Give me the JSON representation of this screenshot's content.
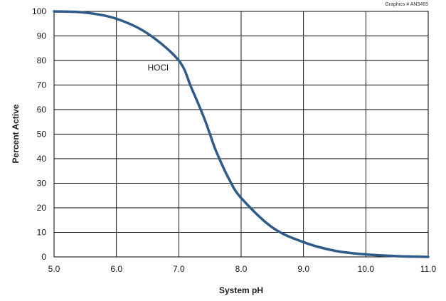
{
  "chart_data": {
    "type": "line",
    "title": "",
    "xlabel": "System pH",
    "ylabel": "Percent Active",
    "credit": "Graphics # AN3465",
    "xlim": [
      5.0,
      11.0
    ],
    "ylim": [
      0,
      100
    ],
    "x_ticks": [
      "5.0",
      "6.0",
      "7.0",
      "8.0",
      "9.0",
      "10.0",
      "11.0"
    ],
    "y_ticks": [
      "0",
      "10",
      "20",
      "30",
      "40",
      "50",
      "60",
      "70",
      "80",
      "90",
      "100"
    ],
    "grid": true,
    "series": [
      {
        "name": "HOCl",
        "color": "#2f5b8a",
        "x": [
          5.0,
          5.5,
          6.0,
          6.5,
          7.0,
          7.2,
          7.4,
          7.5,
          7.6,
          7.8,
          8.0,
          8.5,
          9.0,
          9.5,
          10.0,
          10.5,
          11.0
        ],
        "y": [
          100,
          99.5,
          97,
          91,
          80,
          69,
          57,
          50,
          43,
          32,
          24,
          12,
          6,
          2.5,
          1,
          0.3,
          0
        ]
      }
    ],
    "annotations": [
      {
        "text": "HOCl",
        "x": 6.5,
        "y": 76
      }
    ]
  }
}
